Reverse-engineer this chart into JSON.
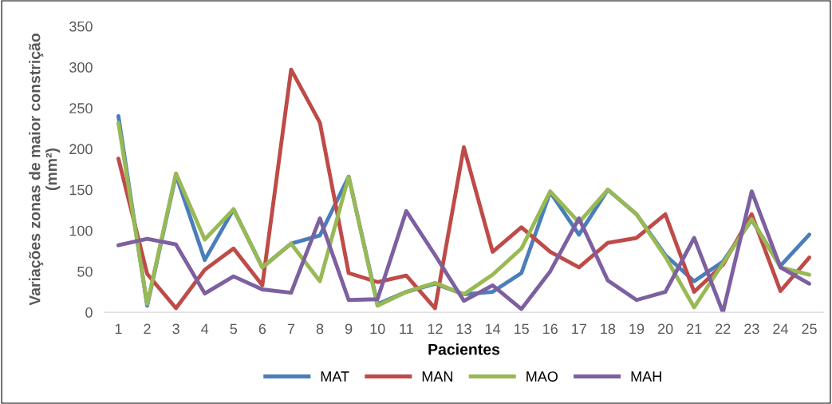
{
  "chart_data": {
    "type": "line",
    "xlabel": "Pacientes",
    "ylabel": "Variações zonas de maior constrição\n(mm²)",
    "categories": [
      "1",
      "2",
      "3",
      "4",
      "5",
      "6",
      "7",
      "8",
      "9",
      "10",
      "11",
      "12",
      "13",
      "14",
      "15",
      "16",
      "17",
      "18",
      "19",
      "20",
      "21",
      "22",
      "23",
      "24",
      "25"
    ],
    "series": [
      {
        "name": "MAT",
        "color": "#4a7ebb",
        "values": [
          240,
          8,
          168,
          64,
          126,
          55,
          84,
          94,
          166,
          10,
          25,
          35,
          22,
          25,
          48,
          147,
          95,
          150,
          120,
          70,
          38,
          62,
          113,
          57,
          95
        ]
      },
      {
        "name": "MAN",
        "color": "#be4b48",
        "values": [
          188,
          47,
          5,
          52,
          78,
          33,
          297,
          232,
          48,
          37,
          45,
          5,
          202,
          74,
          104,
          74,
          55,
          85,
          91,
          120,
          25,
          58,
          120,
          26,
          67
        ]
      },
      {
        "name": "MAO",
        "color": "#98b954",
        "values": [
          232,
          10,
          170,
          89,
          126,
          55,
          84,
          38,
          166,
          8,
          25,
          36,
          22,
          46,
          78,
          148,
          110,
          150,
          120,
          68,
          6,
          60,
          114,
          55,
          46
        ]
      },
      {
        "name": "MAH",
        "color": "#7d60a0",
        "values": [
          82,
          90,
          83,
          23,
          44,
          28,
          24,
          115,
          15,
          16,
          124,
          70,
          14,
          33,
          4,
          50,
          115,
          39,
          15,
          25,
          91,
          0,
          148,
          55,
          35
        ]
      }
    ],
    "ylim": [
      0,
      350
    ],
    "yticks": [
      0,
      50,
      100,
      150,
      200,
      250,
      300,
      350
    ],
    "grid": false,
    "legend": "bottom",
    "marker": "none",
    "line_style": "solid"
  }
}
